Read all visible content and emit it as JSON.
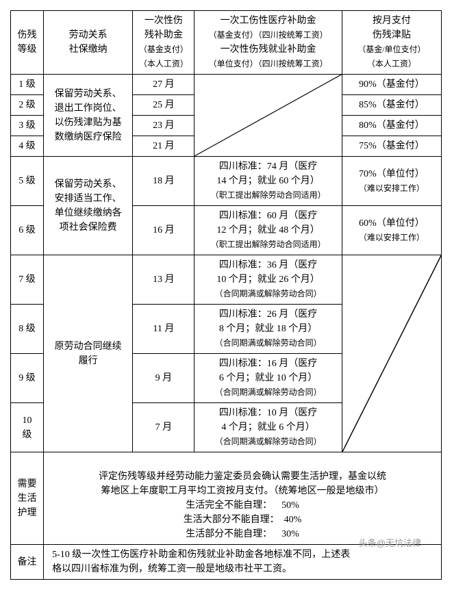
{
  "cols": {
    "c1": 48,
    "c2": 130,
    "c3": 90,
    "c4": 210,
    "c5": 140
  },
  "header": {
    "h1": "伤残\n等级",
    "h2": "劳动关系\n社保缴纳",
    "h3a": "一次性伤\n残补助金",
    "h3b": "（基金支付）",
    "h3c": "（本人工资）",
    "h4a": "一次工伤性医疗补助金",
    "h4b": "（基金支付）（四川按统筹工资）",
    "h4c": "一次性伤残就业补助金",
    "h4d": "（单位支付）（四川按统筹工资）",
    "h5a": "按月支付\n伤残津贴",
    "h5b": "（基金/单位支付）",
    "h5c": "（本人工资）"
  },
  "rows": [
    {
      "lvl": "1 级",
      "c3": "27 月",
      "c5": "90%（基金付）"
    },
    {
      "lvl": "2 级",
      "c3": "25 月",
      "c5": "85%（基金付）"
    },
    {
      "lvl": "3 级",
      "c3": "23 月",
      "c5": "80%（基金付）"
    },
    {
      "lvl": "4 级",
      "c3": "21 月",
      "c5": "75%（基金付）"
    }
  ],
  "grp1_c2": "保留劳动关系、\n退出工作岗位、\n以伤残津贴为基\n数缴纳医疗保险",
  "row5": {
    "lvl": "5 级",
    "c3": "18 月",
    "c4a": "四川标准：74 月（医疗\n14 个月；就业 60 个月）",
    "c4b": "（职工提出解除劳动合同适用）",
    "c5a": "70%（单位付）",
    "c5b": "（难以安排工作）"
  },
  "row6": {
    "lvl": "6 级",
    "c3": "16 月",
    "c4a": "四川标准：60 月（医疗\n12 个月；就业 48 个月）",
    "c4b": "（职工提出解除劳动合同适用）",
    "c5a": "60%（单位付）",
    "c5b": "（难以安排工作）"
  },
  "grp2_c2": "保留劳动关系、\n安排适当工作、\n单位继续缴纳各\n项社会保险费",
  "row7": {
    "lvl": "7 级",
    "c3": "13 月",
    "c4a": "四川标准：36 月（医疗\n10 个月；就业 26 个月）",
    "c4b": "（合同期满或解除劳动合同）"
  },
  "row8": {
    "lvl": "8 级",
    "c3": "11 月",
    "c4a": "四川标准：26 月（医疗\n8 个月；就业 18 个月）",
    "c4b": "（合同期满或解除劳动合同）"
  },
  "row9": {
    "lvl": "9 级",
    "c3": "9 月",
    "c4a": "四川标准：16 月（医疗\n6 个月；就业 10 个月）",
    "c4b": "（合同期满或解除劳动合同）"
  },
  "row10": {
    "lvl": "10\n级",
    "c3": "7 月",
    "c4a": "四川标准：10 月（医疗\n4 个月；就业 6 个月）",
    "c4b": "（合同期满或解除劳动合同）"
  },
  "grp3_c2": "原劳动合同继续\n履行",
  "care": {
    "label": "需要\n生活\n护理",
    "l1": "评定伤残等级并经劳动能力鉴定委员会确认需要生活护理，基金以统",
    "l2": "筹地区上年度职工月平均工资按月支付。（统筹地区一般是地级市）",
    "l3": "生活完全不能自理：    50%",
    "l4": "生活大部分不能自理：  40%",
    "l5": "生活部分不能自理：    30%"
  },
  "note": {
    "label": "备注",
    "text": "5-10 级一次性工伤医疗补助金和伤残就业补助金各地标准不同，上述表\n格以四川省标准为例，统筹工资一般是地级市社平工资。"
  },
  "watermark": "头条@无坑法律"
}
